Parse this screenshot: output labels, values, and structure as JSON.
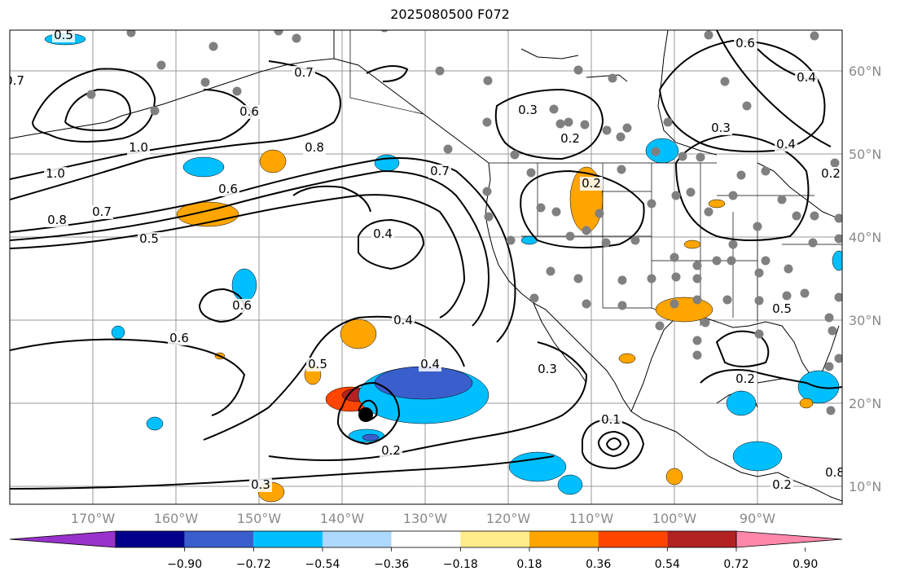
{
  "title": "2025080500 F072",
  "lat_labels": [
    "60°N",
    "50°N",
    "40°N",
    "30°N",
    "20°N",
    "10°N"
  ],
  "lon_labels": [
    "170°W",
    "160°W",
    "150°W",
    "140°W",
    "130°W",
    "120°W",
    "110°W",
    "100°W",
    "90°W"
  ],
  "colorbar": {
    "colors": [
      "#9932cc",
      "#00008b",
      "#3a5fcd",
      "#00bfff",
      "#add8ff",
      "#ffffff",
      "#ffec8b",
      "#ffa500",
      "#ff4500",
      "#b22222",
      "#ff88aa"
    ],
    "tick_labels": [
      "−0.90",
      "−0.72",
      "−0.54",
      "−0.36",
      "−0.18",
      "0.18",
      "0.36",
      "0.54",
      "0.72",
      "0.90"
    ]
  },
  "contour_labels": [
    "0.5",
    "0.7",
    "0.6",
    "1.0",
    "1.0",
    "0.8",
    "0.8",
    "0.7",
    "0.6",
    "0.5",
    "0.4",
    "0.6",
    "0.6",
    "0.4",
    "0.5",
    "0.4",
    "0.2",
    "0.3",
    "0.3",
    "0.2",
    "0.7",
    "0.3",
    "0.2",
    "0.3",
    "0.6",
    "0.4",
    "0.4",
    "0.2",
    "0.5",
    "0.2",
    "0.1",
    "0.2",
    "0.8",
    "0.7"
  ],
  "marker_count_note": ""
}
